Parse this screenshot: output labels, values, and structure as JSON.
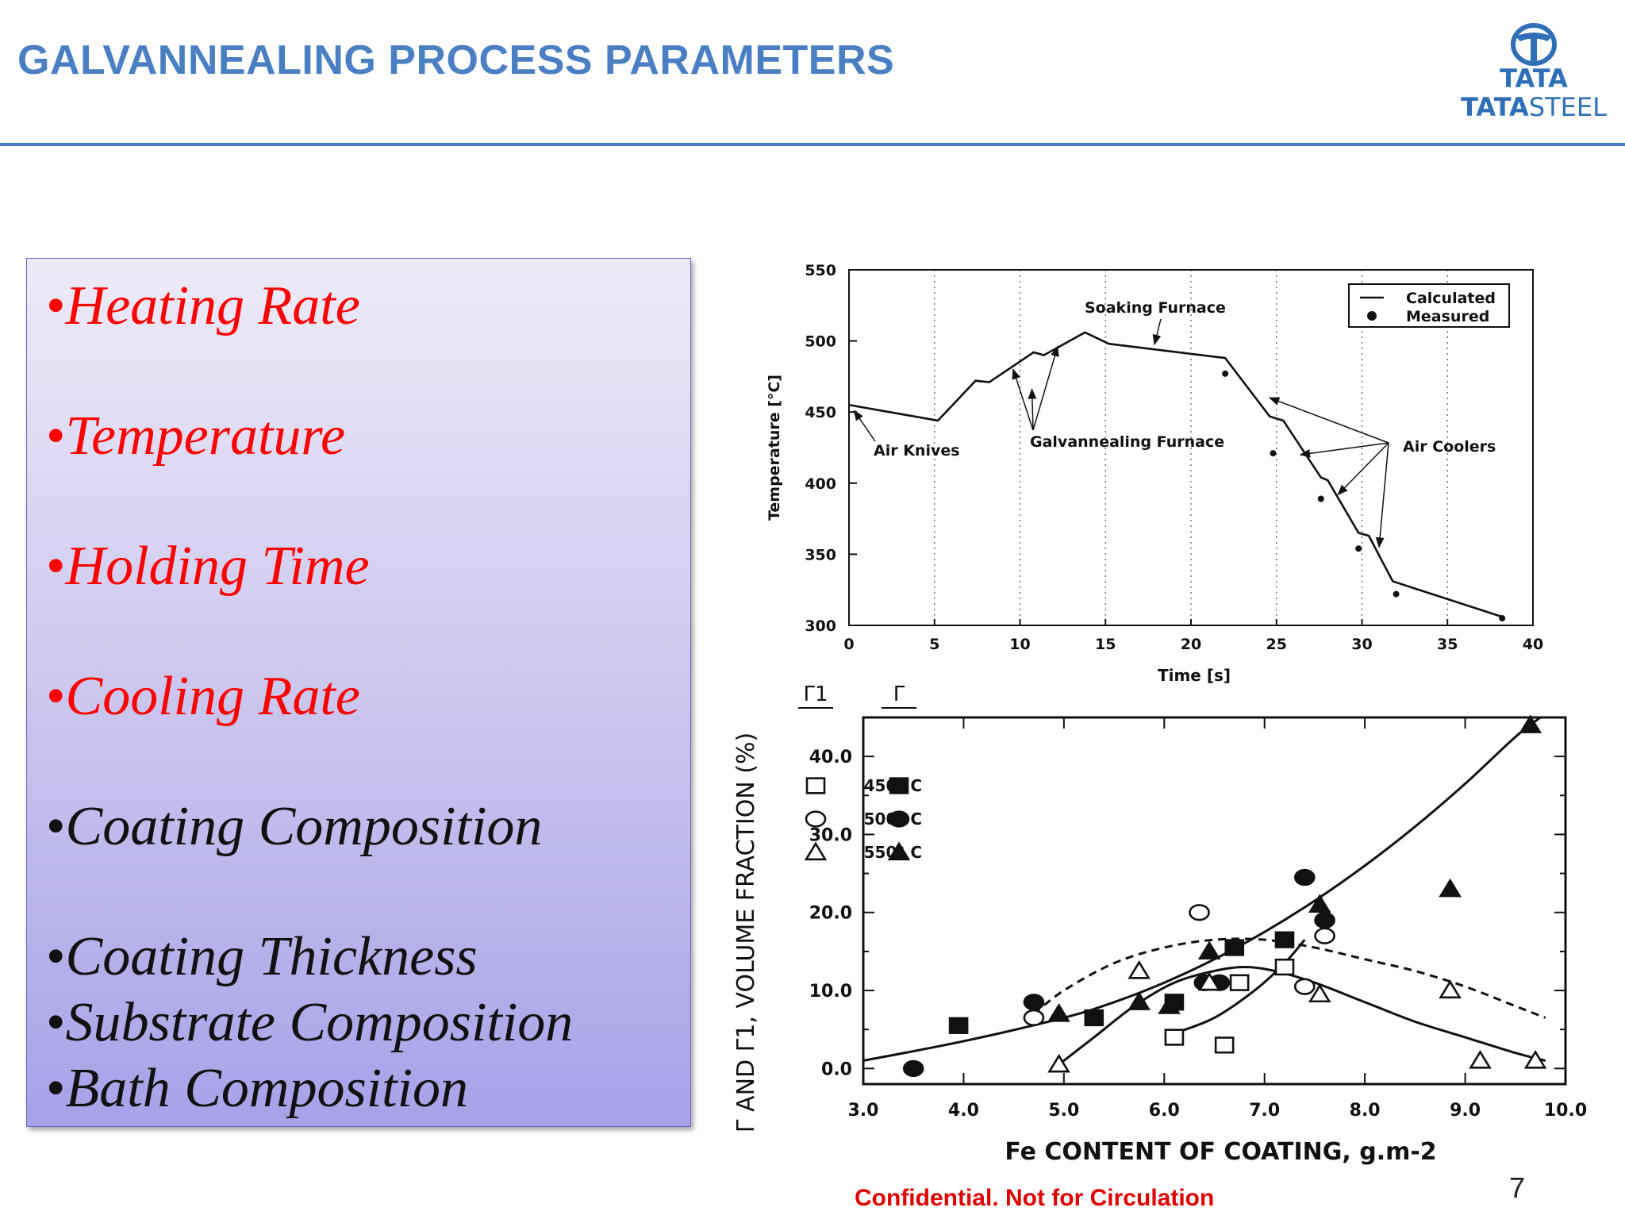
{
  "slide": {
    "title": "GALVANNEALING PROCESS PARAMETERS",
    "logo_top": "TATA",
    "logo_bottom_bold": "TATA",
    "logo_bottom_light": "STEEL",
    "footer": "Confidential. Not for Circulation",
    "page_number": "7",
    "title_color": "#4a7fc4",
    "footer_color": "#e00000"
  },
  "bullets": [
    {
      "marker": "•",
      "text": "Heating Rate",
      "color": "#ff0000"
    },
    {
      "marker": "•",
      "text": "Temperature",
      "color": "#ff0000"
    },
    {
      "marker": "•",
      "text": "Holding Time",
      "color": "#ff0000"
    },
    {
      "marker": "•",
      "text": "Cooling Rate",
      "color": "#ff0000"
    },
    {
      "marker": "•",
      "text": "Coating Composition",
      "color": "#111111"
    },
    {
      "marker": "•",
      "text": "Coating Thickness",
      "color": "#111111"
    },
    {
      "marker": "•",
      "text": "Substrate Composition",
      "color": "#111111"
    },
    {
      "marker": "•",
      "text": "Bath Composition",
      "color": "#111111"
    }
  ],
  "chart_data": [
    {
      "type": "line",
      "title": "",
      "xlabel": "Time [s]",
      "ylabel": "Temperature [°C]",
      "xlim": [
        0,
        40
      ],
      "ylim": [
        300,
        550
      ],
      "xticks": [
        "0",
        "5",
        "10",
        "15",
        "20",
        "25",
        "30",
        "35",
        "40"
      ],
      "yticks": [
        "300",
        "350",
        "400",
        "450",
        "500",
        "550"
      ],
      "grid": "vertical dotted",
      "legend": "top-right",
      "series": [
        {
          "name": "Calculated",
          "style": "line",
          "x": [
            0,
            5.2,
            7.4,
            8.2,
            10.8,
            11.4,
            13.8,
            15.2,
            22,
            24.6,
            25.4,
            27.6,
            28,
            29.8,
            30.4,
            31.8,
            38.2
          ],
          "y": [
            455,
            444,
            472,
            471,
            492,
            490,
            506,
            498,
            488,
            447,
            444,
            404,
            402,
            365,
            363,
            331,
            306
          ]
        },
        {
          "name": "Measured",
          "style": "dots",
          "x": [
            22,
            24.8,
            27.6,
            29.8,
            32,
            38.2
          ],
          "y": [
            477,
            421,
            389,
            354,
            322,
            305
          ]
        }
      ],
      "annotations": [
        {
          "text": "Soaking Furnace"
        },
        {
          "text": "Air Knives"
        },
        {
          "text": "Galvannealing Furnace"
        },
        {
          "text": "Air Coolers"
        }
      ]
    },
    {
      "type": "scatter",
      "title": "",
      "xlabel": "Fe CONTENT OF COATING, g.m-2",
      "ylabel": "Γ AND Γ1, VOLUME FRACTION (%)",
      "xlim": [
        3.0,
        10.0
      ],
      "ylim": [
        -2,
        45
      ],
      "xticks": [
        "3.0",
        "4.0",
        "5.0",
        "6.0",
        "7.0",
        "8.0",
        "9.0",
        "10.0"
      ],
      "yticks": [
        "0.0",
        "10.0",
        "20.0",
        "30.0",
        "40.0"
      ],
      "legend": "top-left",
      "legend_headers": [
        "Γ1",
        "Γ"
      ],
      "legend_rows": [
        "450° C",
        "500° C",
        "550° C"
      ],
      "series": [
        {
          "name": "Γ1 450° C",
          "marker": "open-square",
          "x": [
            6.1,
            6.6,
            6.75,
            7.2
          ],
          "y": [
            4,
            3,
            11,
            13
          ]
        },
        {
          "name": "Γ 450° C",
          "marker": "filled-square",
          "x": [
            3.95,
            5.3,
            6.1,
            6.7,
            7.2
          ],
          "y": [
            5.5,
            6.5,
            8.5,
            15.5,
            16.5
          ]
        },
        {
          "name": "Γ1 500° C",
          "marker": "open-circle",
          "x": [
            4.7,
            6.35,
            7.4,
            7.6
          ],
          "y": [
            6.5,
            20,
            10.5,
            17
          ]
        },
        {
          "name": "Γ 500° C",
          "marker": "filled-circle",
          "x": [
            3.5,
            4.7,
            6.4,
            6.55,
            7.4,
            7.6
          ],
          "y": [
            0,
            8.5,
            11,
            11,
            24.5,
            19
          ]
        },
        {
          "name": "Γ1 550° C",
          "marker": "open-triangle",
          "x": [
            4.95,
            5.75,
            6.45,
            7.55,
            8.85,
            9.15,
            9.7
          ],
          "y": [
            0.5,
            12.5,
            11,
            9.5,
            10,
            1,
            1
          ]
        },
        {
          "name": "Γ 550° C",
          "marker": "filled-triangle",
          "x": [
            4.95,
            5.75,
            6.05,
            6.45,
            7.55,
            8.85,
            9.65
          ],
          "y": [
            7,
            8.5,
            8,
            15,
            21,
            23,
            44
          ]
        }
      ],
      "curves": [
        {
          "style": "solid",
          "x": [
            3.0,
            4.0,
            5.0,
            5.5,
            6.0,
            6.5,
            7.0,
            7.5,
            8.0,
            8.5,
            9.0,
            9.5,
            9.75
          ],
          "y": [
            1,
            3.5,
            6.5,
            8.5,
            11,
            14,
            17.5,
            21.5,
            26,
            31,
            36.5,
            42.5,
            45
          ]
        },
        {
          "style": "dashed",
          "x": [
            4.7,
            5.0,
            5.5,
            6.0,
            6.5,
            7.0,
            7.5,
            8.0,
            8.5,
            9.0,
            9.5,
            9.8
          ],
          "y": [
            7,
            10,
            13.5,
            15.5,
            16.5,
            16.5,
            15.5,
            14,
            12.5,
            10.5,
            8,
            6.5
          ]
        },
        {
          "style": "solid",
          "x": [
            4.9,
            5.3,
            5.7,
            6.1,
            6.5,
            6.8,
            7.1,
            7.5,
            8.0,
            8.5,
            9.0,
            9.5,
            9.8
          ],
          "y": [
            0,
            4,
            8,
            11,
            12.5,
            13,
            12.5,
            11,
            8.5,
            6,
            4,
            2,
            1
          ]
        },
        {
          "style": "solid",
          "x": [
            6.1,
            6.5,
            6.9,
            7.2,
            7.4
          ],
          "y": [
            4.5,
            6.5,
            10,
            13.5,
            16.5
          ]
        }
      ]
    }
  ]
}
